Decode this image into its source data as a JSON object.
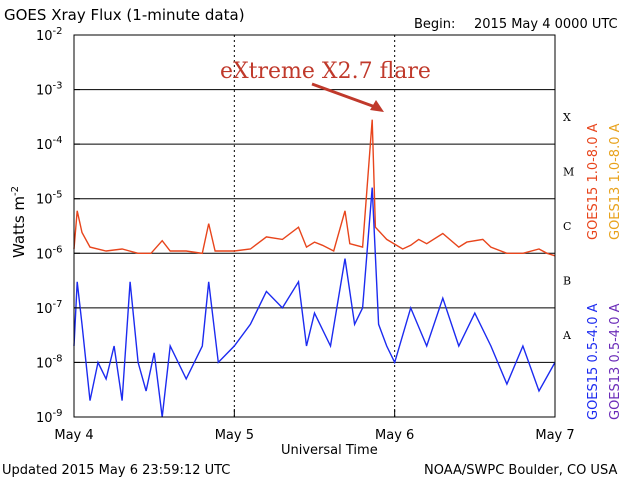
{
  "header": {
    "title": "GOES Xray Flux (1-minute data)",
    "begin_label": "Begin:",
    "begin_value": "2015 May 4 0000 UTC"
  },
  "footer": {
    "updated": "Updated 2015 May  6 23:59:12 UTC",
    "source": "NOAA/SWPC Boulder, CO USA"
  },
  "annotation": {
    "text": "eXtreme X2.7 flare",
    "color": "#c0392b"
  },
  "chart_data": {
    "type": "line",
    "title": "GOES Xray Flux (1-minute data)",
    "xlabel": "Universal Time",
    "ylabel_main": "Watts m",
    "ylabel_exp": "-2",
    "yscale": "log",
    "ylim": [
      1e-09,
      0.01
    ],
    "y_ticks": [
      {
        "mant": "10",
        "exp": "-9"
      },
      {
        "mant": "10",
        "exp": "-8"
      },
      {
        "mant": "10",
        "exp": "-7"
      },
      {
        "mant": "10",
        "exp": "-6"
      },
      {
        "mant": "10",
        "exp": "-5"
      },
      {
        "mant": "10",
        "exp": "-4"
      },
      {
        "mant": "10",
        "exp": "-3"
      },
      {
        "mant": "10",
        "exp": "-2"
      }
    ],
    "xlim_days": [
      0,
      3
    ],
    "x_ticks": [
      "May 4",
      "May 5",
      "May 6",
      "May 7"
    ],
    "flare_classes": [
      "A",
      "B",
      "C",
      "M",
      "X"
    ],
    "grid": true,
    "legend_position": "right",
    "series": [
      {
        "name": "GOES15 1.0-8.0 A",
        "color": "#e8451c",
        "band": "long",
        "points": [
          [
            0.0,
            1.2e-06
          ],
          [
            0.02,
            6e-06
          ],
          [
            0.05,
            2.4e-06
          ],
          [
            0.1,
            1.3e-06
          ],
          [
            0.2,
            1.1e-06
          ],
          [
            0.3,
            1.2e-06
          ],
          [
            0.4,
            1e-06
          ],
          [
            0.48,
            1e-06
          ],
          [
            0.55,
            1.7e-06
          ],
          [
            0.6,
            1.1e-06
          ],
          [
            0.7,
            1.1e-06
          ],
          [
            0.8,
            1e-06
          ],
          [
            0.84,
            3.5e-06
          ],
          [
            0.88,
            1.1e-06
          ],
          [
            1.0,
            1.1e-06
          ],
          [
            1.1,
            1.2e-06
          ],
          [
            1.2,
            2e-06
          ],
          [
            1.3,
            1.8e-06
          ],
          [
            1.4,
            3e-06
          ],
          [
            1.45,
            1.3e-06
          ],
          [
            1.5,
            1.6e-06
          ],
          [
            1.55,
            1.4e-06
          ],
          [
            1.62,
            1.1e-06
          ],
          [
            1.69,
            6e-06
          ],
          [
            1.72,
            1.5e-06
          ],
          [
            1.8,
            1.3e-06
          ],
          [
            1.86,
            0.00028
          ],
          [
            1.88,
            3e-06
          ],
          [
            1.95,
            1.8e-06
          ],
          [
            2.05,
            1.2e-06
          ],
          [
            2.1,
            1.4e-06
          ],
          [
            2.15,
            1.8e-06
          ],
          [
            2.2,
            1.5e-06
          ],
          [
            2.3,
            2.3e-06
          ],
          [
            2.4,
            1.3e-06
          ],
          [
            2.45,
            1.6e-06
          ],
          [
            2.55,
            1.8e-06
          ],
          [
            2.6,
            1.3e-06
          ],
          [
            2.7,
            1e-06
          ],
          [
            2.8,
            1e-06
          ],
          [
            2.9,
            1.2e-06
          ],
          [
            2.95,
            1e-06
          ],
          [
            3.0,
            9e-07
          ]
        ]
      },
      {
        "name": "GOES13 1.0-8.0 A",
        "color": "#e8a21c",
        "band": "long",
        "points": []
      },
      {
        "name": "GOES15 0.5-4.0 A",
        "color": "#1c2bf0",
        "band": "short",
        "points": [
          [
            0.0,
            2e-08
          ],
          [
            0.02,
            3e-07
          ],
          [
            0.05,
            5e-08
          ],
          [
            0.1,
            2e-09
          ],
          [
            0.15,
            1e-08
          ],
          [
            0.2,
            5e-09
          ],
          [
            0.25,
            2e-08
          ],
          [
            0.3,
            2e-09
          ],
          [
            0.35,
            3e-07
          ],
          [
            0.4,
            1e-08
          ],
          [
            0.45,
            3e-09
          ],
          [
            0.5,
            1.5e-08
          ],
          [
            0.55,
            1e-09
          ],
          [
            0.6,
            2e-08
          ],
          [
            0.7,
            5e-09
          ],
          [
            0.8,
            2e-08
          ],
          [
            0.84,
            3e-07
          ],
          [
            0.9,
            1e-08
          ],
          [
            1.0,
            2e-08
          ],
          [
            1.1,
            5e-08
          ],
          [
            1.2,
            2e-07
          ],
          [
            1.3,
            1e-07
          ],
          [
            1.4,
            3e-07
          ],
          [
            1.45,
            2e-08
          ],
          [
            1.5,
            8e-08
          ],
          [
            1.6,
            2e-08
          ],
          [
            1.69,
            8e-07
          ],
          [
            1.75,
            5e-08
          ],
          [
            1.8,
            1e-07
          ],
          [
            1.86,
            1.6e-05
          ],
          [
            1.9,
            5e-08
          ],
          [
            1.95,
            2e-08
          ],
          [
            2.0,
            1e-08
          ],
          [
            2.1,
            1e-07
          ],
          [
            2.2,
            2e-08
          ],
          [
            2.3,
            1.5e-07
          ],
          [
            2.4,
            2e-08
          ],
          [
            2.5,
            8e-08
          ],
          [
            2.6,
            2e-08
          ],
          [
            2.7,
            4e-09
          ],
          [
            2.8,
            2e-08
          ],
          [
            2.9,
            3e-09
          ],
          [
            3.0,
            1e-08
          ]
        ]
      },
      {
        "name": "GOES13 0.5-4.0 A",
        "color": "#6a2bb8",
        "band": "short",
        "points": []
      }
    ]
  }
}
